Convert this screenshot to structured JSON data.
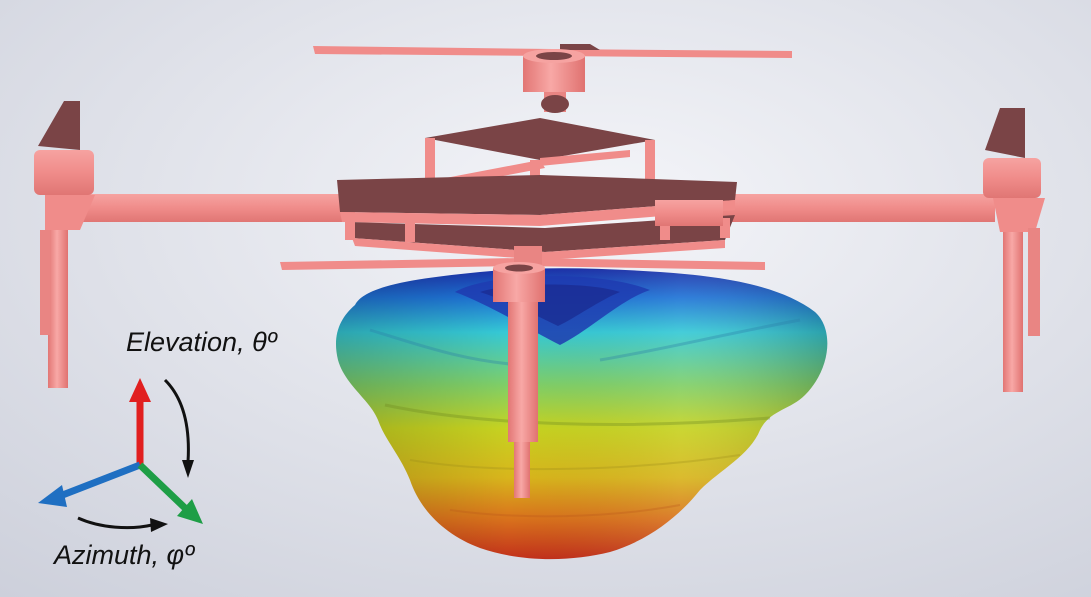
{
  "labels": {
    "elevation": "Elevation, θº",
    "azimuth": "Azimuth, φº"
  },
  "colors": {
    "background_light": "#f3f4f8",
    "background_dark": "#cfd1dc",
    "drone_body": "#f08c8a",
    "drone_top_face": "#7a4446",
    "axis_up": "#e11f1f",
    "axis_left": "#1f6fc2",
    "axis_right": "#1e9e46",
    "pattern_low": "#1c2fa8",
    "pattern_mid": "#35c9d6",
    "pattern_high": "#b7d224",
    "pattern_peak": "#c8361c"
  },
  "icons": [
    "coordinate-axes-icon",
    "elevation-arrow-icon",
    "azimuth-arrow-icon"
  ]
}
